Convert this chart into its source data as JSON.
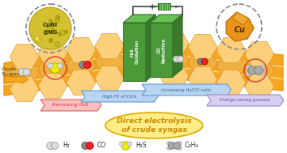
{
  "title": "Direct electrolysis\nof crude syngas",
  "title_color": "#cc8800",
  "title_bg": "#ffee88",
  "background_color": "#ffffff",
  "crude_syngas_label": "Crude\nSyngas",
  "crude_syngas_arrow_color": "#f5a623",
  "belt_color": "#f5a623",
  "belt_edge_color": "#e8960a",
  "belt_light_color": "#fcd07a",
  "green_electrode_color": "#4a9a3a",
  "green_electrode_edge": "#2d6e22",
  "green_light": "#6abf55",
  "battery_color": "#3a7a2a",
  "h2s_oxidation_label": "H₂S\nOxidation",
  "co_reduction_label": "CO\nReduction",
  "plus_label": "+",
  "minus_label": "-",
  "coni_label": "CoNi\n@NG",
  "cu_label": "Cu",
  "removing_h2s_label": "Removing H₂S",
  "removing_h2s_color": "#e06060",
  "removing_h2s_bg": "#f9c0c0",
  "high_fe_label": "High FE of C₂H₄",
  "high_fe_color": "#6699cc",
  "high_fe_bg": "#b8d4f0",
  "increasing_label": "Increasing H₂/CO ratio",
  "increasing_color": "#6699cc",
  "increasing_bg": "#b8d4f0",
  "energy_saving_label": "Energy-saving process",
  "energy_saving_color": "#9b87c3",
  "energy_saving_bg": "#d8cff0",
  "legend_h2_label": "H₂",
  "legend_co_label": "CO",
  "legend_h2s_label": "H₂S",
  "legend_c2h4_label": "C₂H₄",
  "dashed_circle_color": "#888888",
  "coni_bg_color": "#ddcc44",
  "coni_center_color": "#ccbb22",
  "cu_bg_color": "#e8941a",
  "hex_color": "#f0b040",
  "hex_edge": "#d99020",
  "white_hex_color": "#fde8b0",
  "belt_white_line": "#fde8aa"
}
